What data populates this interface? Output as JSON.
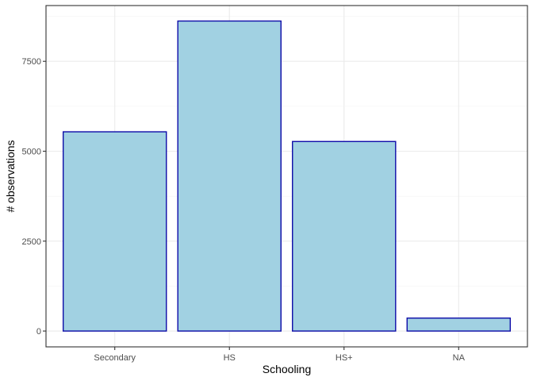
{
  "chart_data": {
    "type": "bar",
    "categories": [
      "Secondary",
      "HS",
      "HS+",
      "NA"
    ],
    "values": [
      5540,
      8620,
      5270,
      360
    ],
    "xlabel": "Schooling",
    "ylabel": "# observations",
    "ylim": [
      -440,
      9050
    ],
    "yticks": [
      0,
      2500,
      5000,
      7500
    ],
    "ytick_labels": [
      "0",
      "2500",
      "5000",
      "7500"
    ],
    "grid": true,
    "theme": "bw",
    "colors": {
      "fill": "#a1d1e2",
      "outline": "#0d0ba8",
      "panel_border": "#333333",
      "grid": "#ebebeb"
    }
  }
}
